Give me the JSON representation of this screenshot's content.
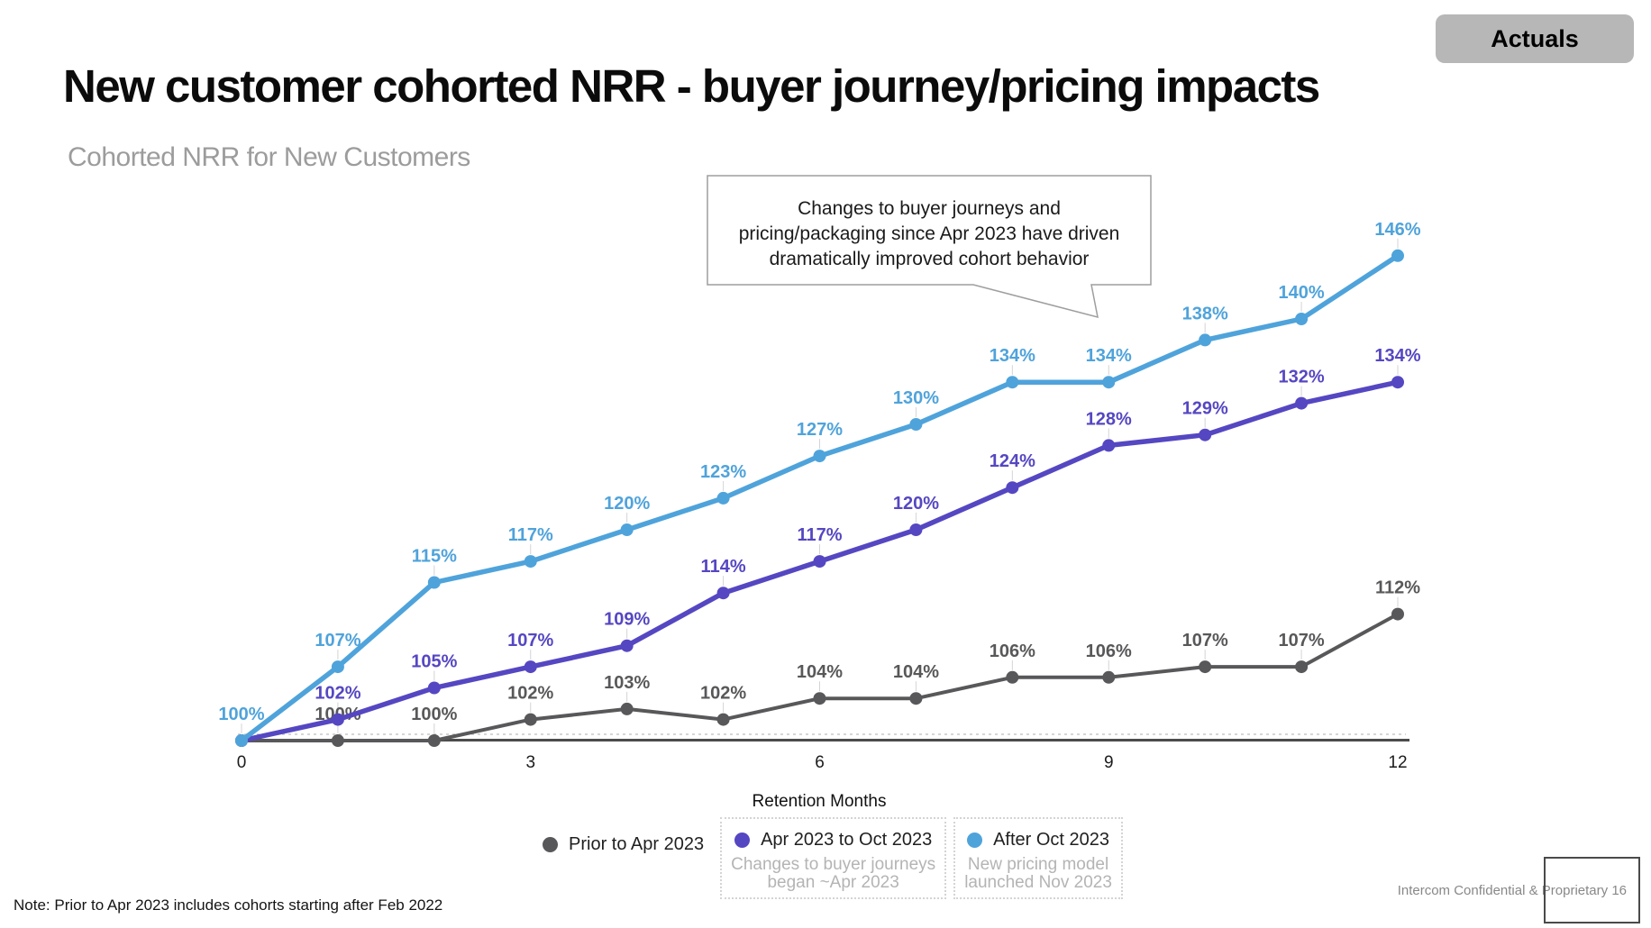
{
  "badge": {
    "label": "Actuals"
  },
  "header": {
    "title": "New customer cohorted NRR - buyer journey/pricing impacts",
    "subtitle": "Cohorted NRR for New Customers"
  },
  "callout": {
    "lines": [
      "Changes to buyer journeys and",
      "pricing/packaging since Apr 2023 have driven",
      "dramatically improved cohort behavior"
    ]
  },
  "chart_data": {
    "type": "line",
    "x": [
      0,
      1,
      2,
      3,
      4,
      5,
      6,
      7,
      8,
      9,
      10,
      11,
      12
    ],
    "x_ticks": [
      0,
      3,
      6,
      9,
      12
    ],
    "xlabel": "Retention Months",
    "ylim": [
      99.5,
      149
    ],
    "baseline": 100,
    "grid": "horizontal dashed line at 100%",
    "legend_position": "bottom",
    "series": [
      {
        "name": "Prior to Apr 2023",
        "color": "#58585A",
        "values": [
          100,
          100,
          100,
          102,
          103,
          102,
          104,
          104,
          106,
          106,
          107,
          107,
          112
        ],
        "label_month_zero": false
      },
      {
        "name": "Apr 2023 to Oct 2023",
        "color": "#5547C2",
        "values": [
          100,
          102,
          105,
          107,
          109,
          114,
          117,
          120,
          124,
          128,
          129,
          132,
          134
        ],
        "label_month_zero": false
      },
      {
        "name": "After Oct 2023",
        "color": "#4FA3DB",
        "values": [
          100,
          107,
          115,
          117,
          120,
          123,
          127,
          130,
          134,
          134,
          138,
          140,
          146
        ],
        "label_month_zero": true
      }
    ]
  },
  "legend": {
    "annotations": [
      {
        "lines": [
          "Changes to buyer journeys",
          "began ~Apr 2023"
        ]
      },
      {
        "lines": [
          "New pricing model",
          "launched Nov 2023"
        ]
      }
    ]
  },
  "note": {
    "text": "Note: Prior to Apr 2023 includes cohorts starting after Feb 2022"
  },
  "footer": {
    "text": "Intercom Confidential & Proprietary",
    "page": "16"
  }
}
